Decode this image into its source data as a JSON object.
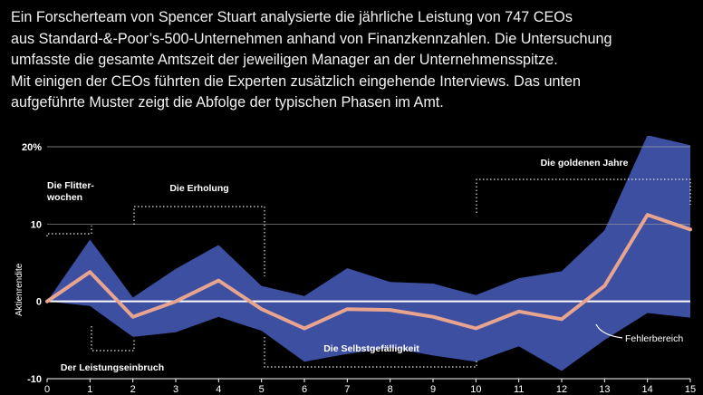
{
  "intro": {
    "lines": [
      "Ein Forscherteam von Spencer Stuart analysierte die jährliche Leistung von 747 CEOs",
      "aus Standard-&-Poor’s-500-Unternehmen anhand von Finanzkennzahlen. Die Untersuchung",
      "umfasste die gesamte Amtszeit der jeweiligen Manager an der Unternehmensspitze.",
      "Mit einigen der CEOs führten die Experten zusätzlich eingehende Interviews. Das unten",
      "aufgeführte Muster zeigt die Abfolge der typischen Phasen im Amt."
    ]
  },
  "chart_data": {
    "type": "line",
    "ylabel": "Aktienrendite",
    "xlabel": "",
    "x": [
      0,
      1,
      2,
      3,
      4,
      5,
      6,
      7,
      8,
      9,
      10,
      11,
      12,
      13,
      14,
      15
    ],
    "xlim": [
      0,
      15
    ],
    "ylim": [
      -10,
      20
    ],
    "x_ticks": [
      "0",
      "1",
      "2",
      "3",
      "4",
      "5",
      "6",
      "7",
      "8",
      "9",
      "10",
      "11",
      "12",
      "13",
      "14",
      "15"
    ],
    "y_ticks": [
      {
        "value": 20,
        "label": "20%"
      },
      {
        "value": 10,
        "label": "10"
      },
      {
        "value": 0,
        "label": "0"
      },
      {
        "value": -10,
        "label": "-10"
      }
    ],
    "grid": "horizontal",
    "series": [
      {
        "values": [
          0,
          3.8,
          -2.0,
          0,
          2.7,
          -1.0,
          -3.5,
          -1.0,
          -1.1,
          -2.0,
          -3.5,
          -1.3,
          -2.3,
          2.0,
          11.2,
          9.3
        ],
        "color": "#e8a48e"
      }
    ],
    "error_band": {
      "name": "Fehlerbereich",
      "upper": [
        0,
        8.0,
        0.5,
        4.2,
        7.3,
        2.0,
        0.7,
        4.3,
        2.5,
        2.3,
        0.8,
        3.0,
        3.9,
        9.2,
        21.5,
        20.2
      ],
      "lower": [
        0,
        -0.6,
        -4.6,
        -4.0,
        -2.0,
        -3.8,
        -7.8,
        -6.8,
        -6.0,
        -7.0,
        -7.8,
        -5.8,
        -9.0,
        -5.0,
        -1.5,
        -2.1
      ],
      "color": "#3d4fa0"
    },
    "annotations": [
      {
        "id": "flitterwochen",
        "text": [
          "Die Flitter-",
          "wochen"
        ]
      },
      {
        "id": "leistungseinbruch",
        "text": [
          "Der Leistungseinbruch"
        ]
      },
      {
        "id": "erholung",
        "text": [
          "Die Erholung"
        ]
      },
      {
        "id": "selbstgefaelligkeit",
        "text": [
          "Die Selbstgefälligkeit"
        ]
      },
      {
        "id": "goldene-jahre",
        "text": [
          "Die goldenen Jahre"
        ]
      },
      {
        "id": "fehlerbereich",
        "text": [
          "Fehlerbereich"
        ]
      }
    ]
  }
}
